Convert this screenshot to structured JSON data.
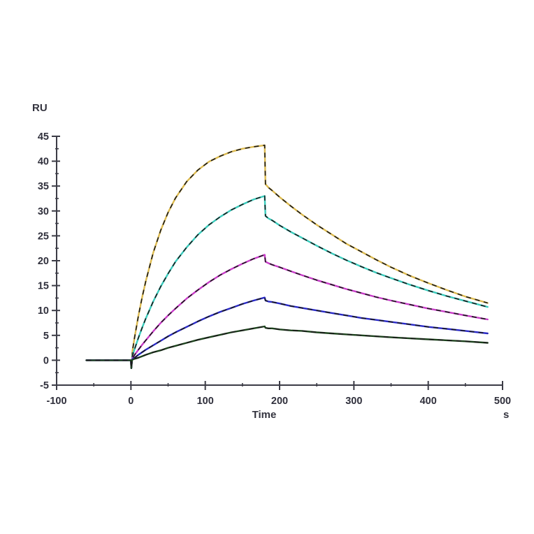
{
  "chart_data": {
    "type": "line",
    "title": "",
    "ylabel": "RU",
    "xlabel": "Time",
    "x_unit": "s",
    "xlim": [
      -100,
      500
    ],
    "ylim": [
      -5,
      45
    ],
    "x_ticks": [
      -100,
      0,
      100,
      200,
      300,
      400,
      500
    ],
    "x_minor_ticks": [
      -50,
      50,
      150,
      250,
      350,
      450
    ],
    "y_ticks": [
      -5,
      0,
      5,
      10,
      15,
      20,
      25,
      30,
      35,
      40,
      45
    ],
    "y_minor_ticks": [
      -2.5,
      2.5,
      7.5,
      12.5,
      17.5,
      22.5,
      27.5,
      32.5,
      37.5,
      42.5
    ],
    "axis_color": "#3c3c46",
    "fit_color": "#1a1a1a",
    "grid": false,
    "legend": "none",
    "series": [
      {
        "name": "curve-gold-highest-concentration",
        "color": "#DDBA4E",
        "points": [
          [
            -60,
            0
          ],
          [
            -30,
            0
          ],
          [
            -5,
            0
          ],
          [
            0,
            0
          ],
          [
            0.5,
            -1.6
          ],
          [
            1.5,
            0.3
          ],
          [
            2,
            1.9
          ],
          [
            5,
            4.7
          ],
          [
            10,
            8.9
          ],
          [
            15,
            12.6
          ],
          [
            20,
            15.9
          ],
          [
            30,
            21.6
          ],
          [
            40,
            26.1
          ],
          [
            50,
            29.7
          ],
          [
            60,
            32.6
          ],
          [
            75,
            35.9
          ],
          [
            90,
            38.2
          ],
          [
            105,
            39.9
          ],
          [
            120,
            41
          ],
          [
            135,
            41.9
          ],
          [
            150,
            42.5
          ],
          [
            165,
            42.9
          ],
          [
            180,
            43.2
          ],
          [
            181,
            35.4
          ],
          [
            185,
            34.7
          ],
          [
            190,
            34.1
          ],
          [
            200,
            32.8
          ],
          [
            215,
            31
          ],
          [
            230,
            29.3
          ],
          [
            250,
            27.2
          ],
          [
            270,
            25.3
          ],
          [
            290,
            23.4
          ],
          [
            310,
            21.8
          ],
          [
            330,
            20.2
          ],
          [
            350,
            18.7
          ],
          [
            375,
            17
          ],
          [
            400,
            15.5
          ],
          [
            425,
            14.1
          ],
          [
            450,
            12.8
          ],
          [
            480,
            11.5
          ]
        ]
      },
      {
        "name": "curve-cyan",
        "color": "#38CBBC",
        "points": [
          [
            -60,
            0
          ],
          [
            -30,
            0
          ],
          [
            -5,
            0
          ],
          [
            0,
            0
          ],
          [
            0.5,
            -1.6
          ],
          [
            1.5,
            0.2
          ],
          [
            2,
            0.9
          ],
          [
            5,
            2.3
          ],
          [
            10,
            4.5
          ],
          [
            15,
            6.5
          ],
          [
            20,
            8.4
          ],
          [
            30,
            11.8
          ],
          [
            40,
            14.8
          ],
          [
            50,
            17.4
          ],
          [
            60,
            19.8
          ],
          [
            75,
            22.7
          ],
          [
            90,
            25.2
          ],
          [
            105,
            27.2
          ],
          [
            120,
            28.8
          ],
          [
            135,
            30.2
          ],
          [
            150,
            31.3
          ],
          [
            165,
            32.3
          ],
          [
            180,
            33
          ],
          [
            181,
            29
          ],
          [
            185,
            28.5
          ],
          [
            190,
            28.1
          ],
          [
            200,
            27.1
          ],
          [
            215,
            25.8
          ],
          [
            230,
            24.6
          ],
          [
            250,
            23
          ],
          [
            270,
            21.5
          ],
          [
            290,
            20.1
          ],
          [
            310,
            18.8
          ],
          [
            330,
            17.6
          ],
          [
            350,
            16.5
          ],
          [
            375,
            15.2
          ],
          [
            400,
            14
          ],
          [
            425,
            12.9
          ],
          [
            450,
            11.9
          ],
          [
            480,
            10.7
          ]
        ]
      },
      {
        "name": "curve-magenta",
        "color": "#C93BC9",
        "points": [
          [
            -60,
            0
          ],
          [
            -30,
            0
          ],
          [
            -5,
            0
          ],
          [
            0,
            0
          ],
          [
            0.5,
            -1.6
          ],
          [
            1.5,
            0.1
          ],
          [
            2,
            0.4
          ],
          [
            5,
            1.1
          ],
          [
            10,
            2.1
          ],
          [
            15,
            3.1
          ],
          [
            20,
            4
          ],
          [
            30,
            5.8
          ],
          [
            40,
            7.5
          ],
          [
            50,
            9
          ],
          [
            60,
            10.4
          ],
          [
            75,
            12.4
          ],
          [
            90,
            14.1
          ],
          [
            105,
            15.7
          ],
          [
            120,
            17.1
          ],
          [
            135,
            18.3
          ],
          [
            150,
            19.4
          ],
          [
            165,
            20.4
          ],
          [
            180,
            21.2
          ],
          [
            181,
            19.8
          ],
          [
            185,
            19.5
          ],
          [
            190,
            19.2
          ],
          [
            200,
            18.7
          ],
          [
            215,
            17.9
          ],
          [
            230,
            17.1
          ],
          [
            250,
            16.1
          ],
          [
            270,
            15.2
          ],
          [
            290,
            14.3
          ],
          [
            310,
            13.5
          ],
          [
            330,
            12.7
          ],
          [
            350,
            12
          ],
          [
            375,
            11.2
          ],
          [
            400,
            10.4
          ],
          [
            425,
            9.7
          ],
          [
            450,
            9
          ],
          [
            480,
            8.2
          ]
        ]
      },
      {
        "name": "curve-blue",
        "color": "#2929C8",
        "points": [
          [
            -60,
            0
          ],
          [
            -30,
            0
          ],
          [
            -5,
            0
          ],
          [
            0,
            0
          ],
          [
            0.5,
            -1.6
          ],
          [
            1.5,
            0.1
          ],
          [
            2,
            0.2
          ],
          [
            5,
            0.5
          ],
          [
            10,
            1.1
          ],
          [
            15,
            1.6
          ],
          [
            20,
            2.1
          ],
          [
            30,
            3
          ],
          [
            40,
            3.9
          ],
          [
            50,
            4.8
          ],
          [
            60,
            5.6
          ],
          [
            75,
            6.7
          ],
          [
            90,
            7.8
          ],
          [
            105,
            8.8
          ],
          [
            120,
            9.7
          ],
          [
            135,
            10.5
          ],
          [
            150,
            11.3
          ],
          [
            165,
            12
          ],
          [
            180,
            12.6
          ],
          [
            181,
            12
          ],
          [
            185,
            11.8
          ],
          [
            190,
            11.7
          ],
          [
            200,
            11.4
          ],
          [
            215,
            10.9
          ],
          [
            230,
            10.5
          ],
          [
            250,
            10
          ],
          [
            270,
            9.5
          ],
          [
            290,
            9
          ],
          [
            310,
            8.5
          ],
          [
            330,
            8.1
          ],
          [
            350,
            7.7
          ],
          [
            375,
            7.2
          ],
          [
            400,
            6.7
          ],
          [
            425,
            6.3
          ],
          [
            450,
            5.9
          ],
          [
            480,
            5.4
          ]
        ]
      },
      {
        "name": "curve-dark-green-lowest-concentration",
        "color": "#1C421C",
        "points": [
          [
            -60,
            0
          ],
          [
            -30,
            0
          ],
          [
            -5,
            0
          ],
          [
            0,
            0
          ],
          [
            0.5,
            -1.6
          ],
          [
            1.5,
            0
          ],
          [
            2,
            0.1
          ],
          [
            5,
            0.3
          ],
          [
            10,
            0.5
          ],
          [
            15,
            0.8
          ],
          [
            20,
            1.1
          ],
          [
            30,
            1.6
          ],
          [
            40,
            2
          ],
          [
            50,
            2.5
          ],
          [
            60,
            2.9
          ],
          [
            75,
            3.5
          ],
          [
            90,
            4.1
          ],
          [
            105,
            4.6
          ],
          [
            120,
            5.1
          ],
          [
            135,
            5.6
          ],
          [
            150,
            6
          ],
          [
            165,
            6.4
          ],
          [
            180,
            6.8
          ],
          [
            181,
            6.5
          ],
          [
            185,
            6.4
          ],
          [
            190,
            6.4
          ],
          [
            200,
            6.2
          ],
          [
            215,
            6
          ],
          [
            230,
            5.9
          ],
          [
            250,
            5.6
          ],
          [
            270,
            5.4
          ],
          [
            290,
            5.2
          ],
          [
            310,
            5
          ],
          [
            330,
            4.8
          ],
          [
            350,
            4.6
          ],
          [
            375,
            4.4
          ],
          [
            400,
            4.2
          ],
          [
            425,
            4
          ],
          [
            450,
            3.8
          ],
          [
            480,
            3.5
          ]
        ]
      }
    ],
    "fit_overlay": {
      "name": "black-kinetic-fit-lines",
      "style": "dashed-black-over-each-colored-curve"
    }
  }
}
